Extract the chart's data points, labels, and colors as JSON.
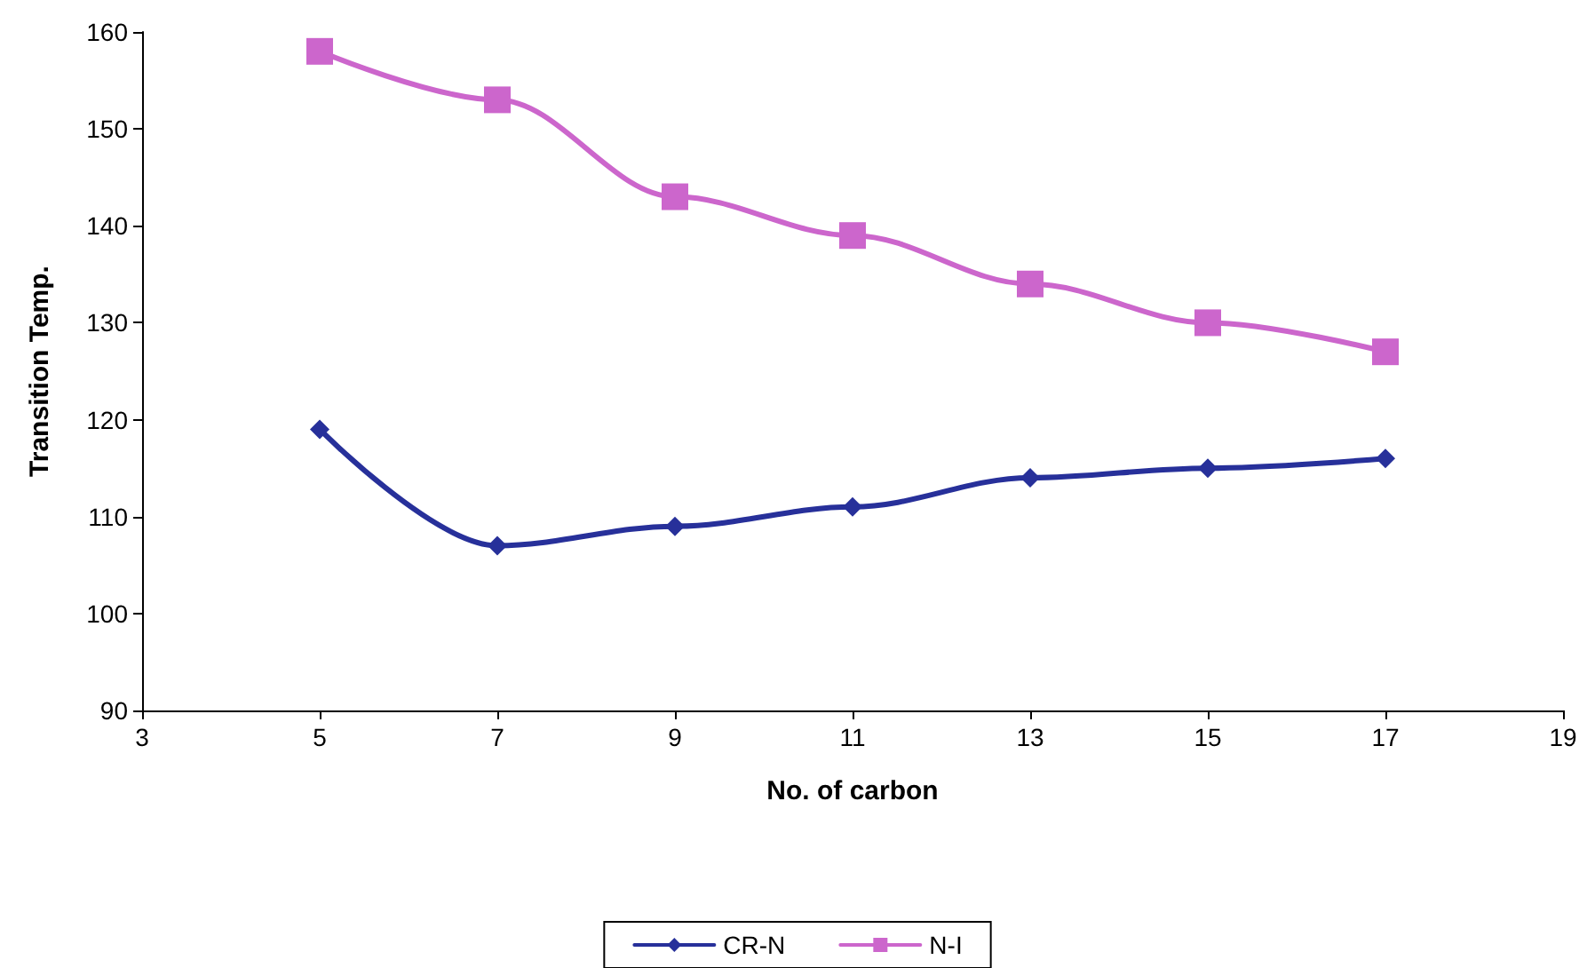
{
  "chart_data": {
    "type": "line",
    "xlabel": "No. of carbon",
    "ylabel": "Transition Temp.",
    "x": [
      5,
      7,
      9,
      11,
      13,
      15,
      17
    ],
    "series": [
      {
        "name": "CR-N",
        "color": "#27309a",
        "marker": "diamond",
        "values": [
          119,
          107,
          109,
          111,
          114,
          115,
          116
        ]
      },
      {
        "name": "N-I",
        "color": "#cc66cc",
        "marker": "square",
        "values": [
          158,
          153,
          143,
          139,
          134,
          130,
          127
        ]
      }
    ],
    "xlim": [
      3,
      19
    ],
    "xticks": [
      3,
      5,
      7,
      9,
      11,
      13,
      15,
      17,
      19
    ],
    "ylim": [
      90,
      160
    ],
    "yticks": [
      90,
      100,
      110,
      120,
      130,
      140,
      150,
      160
    ],
    "grid": false,
    "legend": "bottom",
    "line_style": "solid"
  }
}
